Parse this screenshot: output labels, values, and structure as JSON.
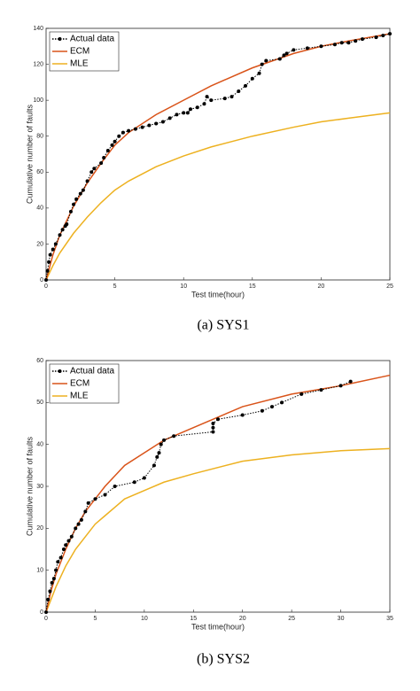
{
  "chart_data": [
    {
      "type": "line",
      "caption": "(a) SYS1",
      "x_label": "Test time(hour)",
      "y_label": "Cumulative number of faults",
      "xlim": [
        0,
        25
      ],
      "xticks": [
        0,
        5,
        10,
        15,
        20,
        25
      ],
      "ylim": [
        0,
        140
      ],
      "yticks": [
        0,
        20,
        40,
        60,
        80,
        100,
        120,
        140
      ],
      "legend": "upper left",
      "series": [
        {
          "name": "Actual data",
          "color": "#000000",
          "line_style": "dotted",
          "marker": "o",
          "x": [
            0,
            0.1,
            0.2,
            0.3,
            0.5,
            0.7,
            1,
            1.2,
            1.4,
            1.5,
            1.8,
            2,
            2.2,
            2.5,
            2.7,
            3,
            3.3,
            3.5,
            4,
            4.2,
            4.5,
            4.8,
            5,
            5.3,
            5.6,
            6,
            6.5,
            7,
            7.5,
            8,
            8.5,
            9,
            9.5,
            10,
            10.3,
            10.5,
            11,
            11.5,
            11.7,
            12,
            13,
            13.5,
            14,
            14.5,
            15,
            15.5,
            15.7,
            16,
            17,
            17.3,
            17.5,
            18,
            19,
            20,
            21,
            21.5,
            22,
            22.5,
            23,
            24,
            24.5,
            25
          ],
          "values": [
            0,
            5,
            10,
            14,
            17,
            20,
            25,
            28,
            30,
            31,
            38,
            42,
            45,
            48,
            50,
            55,
            60,
            62,
            65,
            68,
            72,
            75,
            77,
            80,
            82,
            83,
            84,
            85,
            86,
            87,
            88,
            90,
            92,
            93,
            93,
            95,
            96,
            98,
            102,
            100,
            101,
            102,
            105,
            108,
            112,
            115,
            120,
            122,
            123,
            125,
            126,
            128,
            129,
            130,
            131,
            132,
            132,
            133,
            134,
            135,
            136,
            137
          ]
        },
        {
          "name": "ECM",
          "color": "#d95319",
          "line_style": "solid",
          "x": [
            0,
            0.5,
            1,
            2,
            3,
            4,
            5,
            6,
            8,
            10,
            12,
            15,
            18,
            20,
            22,
            25
          ],
          "values": [
            0,
            14,
            25,
            41,
            54,
            65,
            75,
            82,
            92,
            100,
            108,
            118,
            126,
            130,
            133,
            137
          ]
        },
        {
          "name": "MLE",
          "color": "#edb120",
          "line_style": "solid",
          "x": [
            0,
            0.5,
            1,
            2,
            3,
            4,
            5,
            6,
            8,
            10,
            12,
            15,
            18,
            20,
            22,
            25
          ],
          "values": [
            0,
            8,
            15,
            26,
            35,
            43,
            50,
            55,
            63,
            69,
            74,
            80,
            85,
            88,
            90,
            93
          ]
        }
      ]
    },
    {
      "type": "line",
      "caption": "(b) SYS2",
      "x_label": "Test time(hour)",
      "y_label": "Cumulative number of faults",
      "xlim": [
        0,
        35
      ],
      "xticks": [
        0,
        5,
        10,
        15,
        20,
        25,
        30,
        35
      ],
      "ylim": [
        0,
        60
      ],
      "yticks": [
        0,
        10,
        20,
        30,
        40,
        50,
        60
      ],
      "legend": "upper left",
      "series": [
        {
          "name": "Actual data",
          "color": "#000000",
          "line_style": "dotted",
          "marker": "o",
          "x": [
            0,
            0.2,
            0.4,
            0.6,
            0.8,
            1,
            1.2,
            1.5,
            1.8,
            2,
            2.3,
            2.6,
            3,
            3.3,
            3.6,
            4,
            4.3,
            5,
            6,
            7,
            9,
            10,
            11,
            11.3,
            11.5,
            11.7,
            12,
            13,
            17,
            17,
            17,
            17.5,
            20,
            22,
            23,
            24,
            26,
            28,
            30,
            31
          ],
          "values": [
            0,
            3,
            5,
            7,
            8,
            10,
            12,
            13,
            15,
            16,
            17,
            18,
            20,
            21,
            22,
            24,
            26,
            27,
            28,
            30,
            31,
            32,
            35,
            37,
            38,
            40,
            41,
            42,
            43,
            44,
            45,
            46,
            47,
            48,
            49,
            50,
            52,
            53,
            54,
            55
          ]
        },
        {
          "name": "ECM",
          "color": "#d95319",
          "line_style": "solid",
          "x": [
            0,
            0.5,
            1,
            2,
            3,
            4,
            5,
            6,
            8,
            10,
            12,
            15,
            20,
            25,
            30,
            35
          ],
          "values": [
            0,
            5,
            9,
            15,
            20,
            24,
            27,
            30,
            35,
            38,
            41,
            44,
            49,
            52,
            54,
            56.5
          ]
        },
        {
          "name": "MLE",
          "color": "#edb120",
          "line_style": "solid",
          "x": [
            0,
            0.5,
            1,
            2,
            3,
            4,
            5,
            6,
            8,
            10,
            12,
            15,
            20,
            25,
            30,
            35
          ],
          "values": [
            0,
            3,
            6,
            11,
            15,
            18,
            21,
            23,
            27,
            29,
            31,
            33,
            36,
            37.5,
            38.5,
            39
          ]
        }
      ]
    }
  ]
}
